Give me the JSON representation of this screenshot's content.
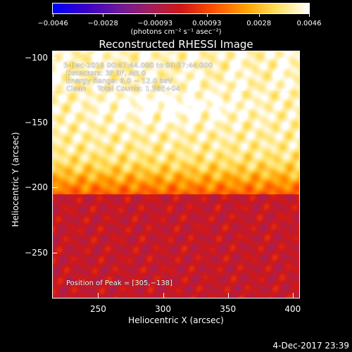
{
  "chart_data": {
    "type": "heatmap",
    "title": "Reconstructed RHESSI Image",
    "xlabel": "Heliocentric X (arcsec)",
    "ylabel": "Heliocentric Y (arcsec)",
    "xlim": [
      215,
      405
    ],
    "ylim": [
      -285,
      -95
    ],
    "xticks": [
      250,
      300,
      350,
      400
    ],
    "yticks": [
      -100,
      -150,
      -200,
      -250
    ],
    "xtick_labels": [
      "250",
      "300",
      "350",
      "400"
    ],
    "ytick_labels": [
      "−100",
      "−150",
      "−200",
      "−250"
    ],
    "colorbar": {
      "range": [
        -0.0046,
        0.0046
      ],
      "ticks": [
        -0.0046,
        -0.0028,
        -0.00093,
        0.00093,
        0.0028,
        0.0046
      ],
      "tick_labels": [
        "−0.0046",
        "−0.0028",
        "−0.00093",
        "0.00093",
        "0.0028",
        "0.0046"
      ],
      "units_label": "(photons cm⁻² s⁻¹ asec⁻²)",
      "colormap": [
        "#0000ff",
        "#3a00c8",
        "#6a1aa0",
        "#a02060",
        "#d01818",
        "#ff5000",
        "#ffa000",
        "#ffe060",
        "#ffffff"
      ]
    },
    "peak": {
      "x": 305,
      "y": -138
    },
    "annotations": {
      "time_range": "5-Dec-2016 00:47:44.000 to 00:57:44.000",
      "detectors": "Detectors: 3F 9F, Att 0",
      "energy": "Energy Range: 6.0 − 12.0 keV",
      "method": "Clean     Total Counts: 1.58E+04",
      "peak_text": "Position of Peak = [305,−138]"
    }
  },
  "footer": {
    "timestamp": "4-Dec-2017 23:39"
  }
}
